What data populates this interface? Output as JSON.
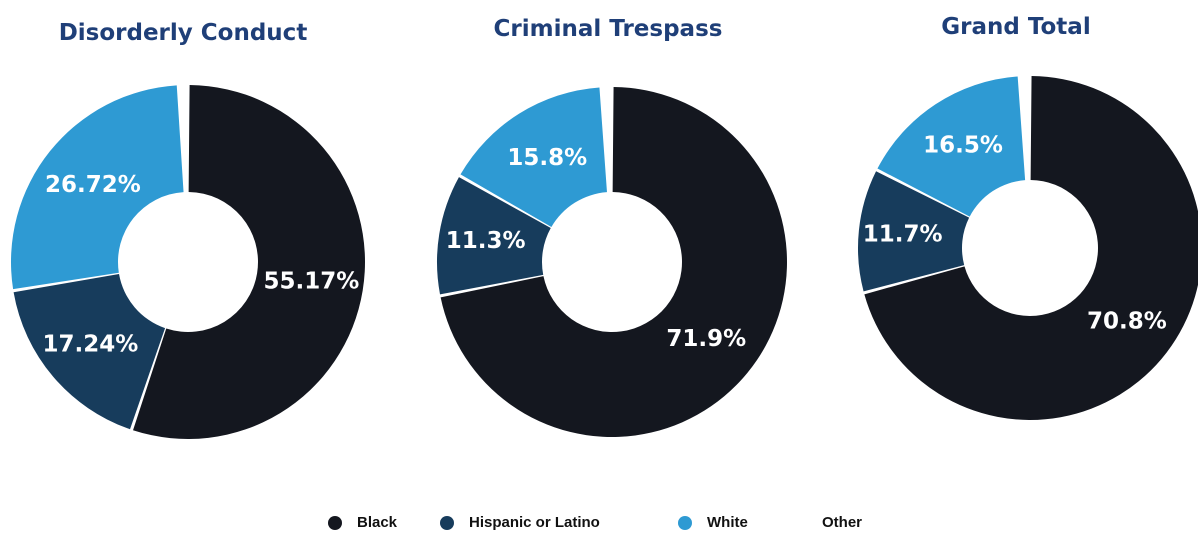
{
  "colors": {
    "black": "#14171f",
    "hispanic": "#173c5c",
    "white": "#2e9ad3",
    "other": "#ffffff",
    "title": "#1f3f78"
  },
  "legend": [
    {
      "label": "Black",
      "color_key": "black",
      "icon": "circle"
    },
    {
      "label": "Hispanic or Latino",
      "color_key": "hispanic",
      "icon": "circle"
    },
    {
      "label": "White",
      "color_key": "white",
      "icon": "circle"
    },
    {
      "label": "Other",
      "color_key": "other",
      "icon": "circle"
    }
  ],
  "chart_data": [
    {
      "type": "pie",
      "title": "Disorderly Conduct",
      "categories": [
        "Black",
        "Hispanic or Latino",
        "White",
        "Other"
      ],
      "values": [
        55.17,
        17.24,
        26.72,
        0.87
      ],
      "labels": [
        "55.17%",
        "17.24%",
        "26.72%",
        ""
      ]
    },
    {
      "type": "pie",
      "title": "Criminal Trespass",
      "categories": [
        "Black",
        "Hispanic or Latino",
        "White",
        "Other"
      ],
      "values": [
        71.9,
        11.3,
        15.8,
        1.0
      ],
      "labels": [
        "71.9%",
        "11.3%",
        "15.8%",
        ""
      ]
    },
    {
      "type": "pie",
      "title": "Grand Total",
      "categories": [
        "Black",
        "Hispanic or Latino",
        "White",
        "Other"
      ],
      "values": [
        70.8,
        11.7,
        16.5,
        1.0
      ],
      "labels": [
        "70.8%",
        "11.7%",
        "16.5%",
        ""
      ]
    }
  ]
}
